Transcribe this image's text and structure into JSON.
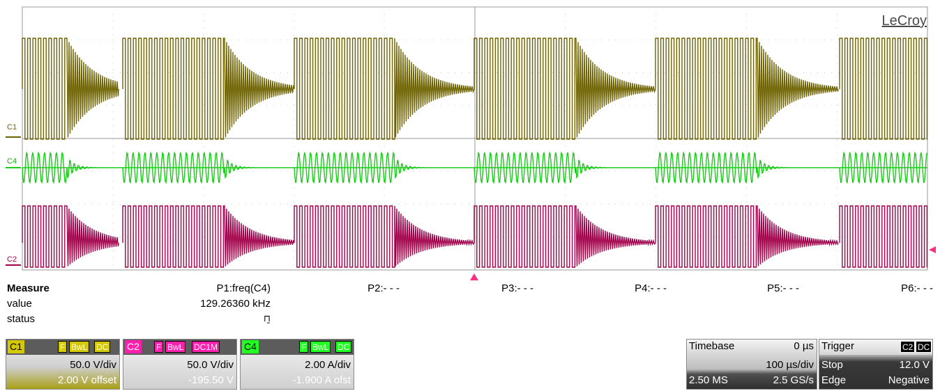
{
  "brand": "LeCroy",
  "channel_markers": {
    "c1": "C1",
    "c4": "C4",
    "c2": "C2"
  },
  "colors": {
    "c1": "#6e6300",
    "c4": "#18cc18",
    "c2": "#a2004a",
    "trigger": "#ff2f83",
    "grid": "#c8c8c8"
  },
  "measure": {
    "title": "Measure",
    "rows": [
      "value",
      "status"
    ],
    "params": [
      {
        "label": "P1:freq(C4)",
        "value": "129.26360 kHz",
        "status": "⊓̱"
      },
      {
        "label": "P2:- - -",
        "value": "",
        "status": ""
      },
      {
        "label": "P3:- - -",
        "value": "",
        "status": ""
      },
      {
        "label": "P4:- - -",
        "value": "",
        "status": ""
      },
      {
        "label": "P5:- - -",
        "value": "",
        "status": ""
      },
      {
        "label": "P6:- - -",
        "value": "",
        "status": ""
      }
    ]
  },
  "channels": [
    {
      "name": "C1",
      "flags": [
        "F",
        "BwL",
        "DC"
      ],
      "scale": "50.0 V/div",
      "offset": "2.00 V offset",
      "color": "#d4c800"
    },
    {
      "name": "C2",
      "flags": [
        "F",
        "BwL",
        "DC1M"
      ],
      "scale": "50.0 V/div",
      "offset": "-195.50 V",
      "color": "#ff1fae"
    },
    {
      "name": "C4",
      "flags": [
        "F",
        "BwL",
        "DC"
      ],
      "scale": "2.00 A/div",
      "offset": "-1.900 A ofst",
      "color": "#22ff22"
    }
  ],
  "timebase": {
    "title": "Timebase",
    "delay": "0 µs",
    "scale": "100 µs/div",
    "samples": "2.50 MS",
    "rate": "2.5 GS/s"
  },
  "trigger": {
    "title": "Trigger",
    "source": "C2",
    "coupling": "DC",
    "mode": "Stop",
    "level": "12.0 V",
    "type": "Edge",
    "slope": "Negative"
  }
}
